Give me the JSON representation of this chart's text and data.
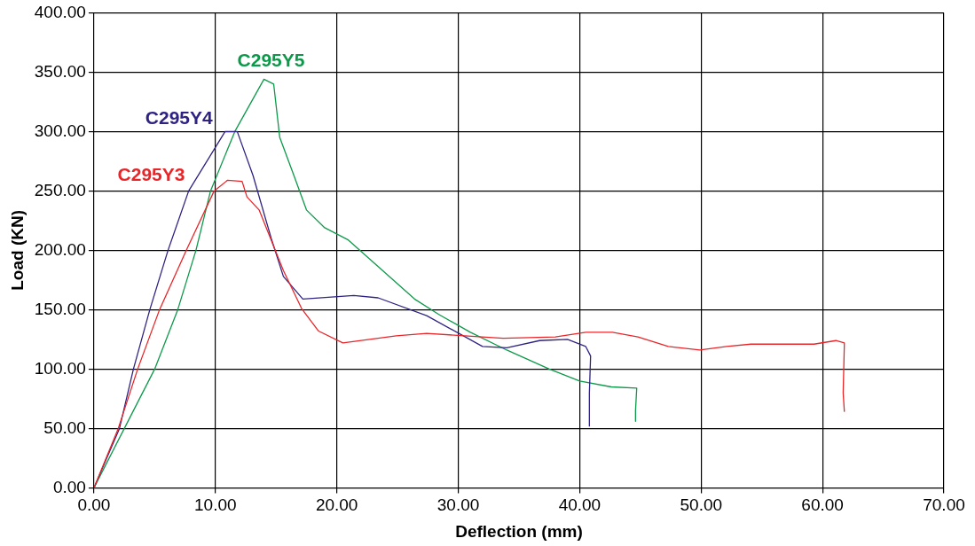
{
  "chart_data": {
    "type": "line",
    "xlabel": "Deflection (mm)",
    "ylabel": "Load (KN)",
    "xlim": [
      0,
      70
    ],
    "ylim": [
      0,
      400
    ],
    "xticks": [
      {
        "value": 0,
        "label": "0.00"
      },
      {
        "value": 10,
        "label": "10.00"
      },
      {
        "value": 20,
        "label": "20.00"
      },
      {
        "value": 30,
        "label": "30.00"
      },
      {
        "value": 40,
        "label": "40.00"
      },
      {
        "value": 50,
        "label": "50.00"
      },
      {
        "value": 60,
        "label": "60.00"
      },
      {
        "value": 70,
        "label": "70.00"
      }
    ],
    "yticks": [
      {
        "value": 0,
        "label": "0.00"
      },
      {
        "value": 50,
        "label": "50.00"
      },
      {
        "value": 100,
        "label": "100.00"
      },
      {
        "value": 150,
        "label": "150.00"
      },
      {
        "value": 200,
        "label": "200.00"
      },
      {
        "value": 250,
        "label": "250.00"
      },
      {
        "value": 300,
        "label": "300.00"
      },
      {
        "value": 350,
        "label": "350.00"
      },
      {
        "value": 400,
        "label": "400.00"
      }
    ],
    "grid": true,
    "legend": false,
    "marker": "none",
    "line_style": "solid",
    "series": [
      {
        "name": "C295Y3",
        "color": "#e8262a",
        "x": [
          0,
          2.0,
          3.6,
          5.4,
          7.6,
          9.9,
          11.0,
          12.2,
          12.6,
          13.6,
          15.6,
          17.1,
          18.5,
          20.5,
          24.9,
          27.4,
          33.7,
          38.0,
          40.5,
          42.7,
          44.8,
          47.3,
          49.9,
          52.1,
          54.1,
          59.3,
          61.1,
          61.8,
          61.7,
          61.8
        ],
        "values": [
          0,
          50,
          100,
          150,
          200,
          250,
          259,
          258,
          245,
          234,
          183,
          151,
          132,
          122,
          128,
          130,
          126,
          127,
          131,
          131,
          127,
          119,
          116,
          119,
          121,
          121,
          124,
          122,
          80,
          64
        ]
      },
      {
        "name": "C295Y4",
        "color": "#2e2383",
        "x": [
          0,
          2.1,
          3.25,
          4.6,
          6.1,
          7.8,
          10.8,
          11.8,
          13.1,
          14.6,
          15.6,
          17.2,
          21.4,
          23.4,
          27.4,
          32.0,
          34.0,
          36.7,
          39.0,
          40.5,
          40.9,
          40.8,
          40.8
        ],
        "values": [
          0,
          50,
          100,
          150,
          200,
          250,
          300,
          300,
          263,
          210,
          178,
          159,
          162,
          160,
          145,
          119,
          118,
          124,
          125,
          119,
          111,
          80,
          52
        ]
      },
      {
        "name": "C295Y5",
        "color": "#0c9a4a",
        "x": [
          0,
          2.5,
          5.0,
          6.9,
          8.4,
          9.6,
          11.6,
          14.0,
          14.8,
          15.3,
          16.5,
          17.5,
          19.0,
          20.9,
          26.4,
          28.4,
          31.0,
          34.0,
          37.5,
          40.0,
          42.6,
          44.7,
          44.6,
          44.6
        ],
        "values": [
          0,
          50,
          100,
          150,
          200,
          250,
          300,
          344,
          340,
          295,
          262,
          234,
          219,
          209,
          159,
          146,
          131,
          116,
          100,
          90,
          85,
          84,
          65,
          56
        ]
      }
    ]
  }
}
